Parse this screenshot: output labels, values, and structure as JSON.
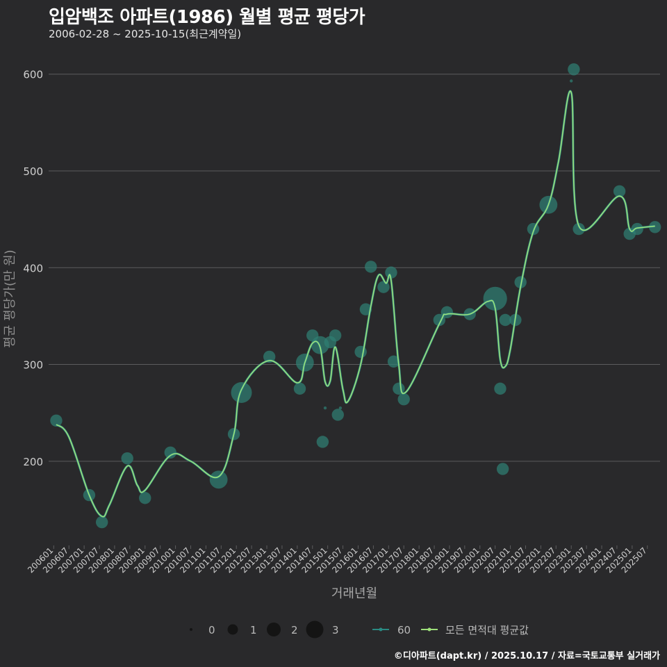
{
  "header": {
    "title": "입암백조 아파트(1986) 월별 평균 평당가",
    "subtitle": "2006-02-28 ~ 2025-10-15(최근계약일)"
  },
  "footer": {
    "credit": "©디아파트(dapt.kr) / 2025.10.17 / 자료=국토교통부 실거래가"
  },
  "colors": {
    "background": "#29292b",
    "grid": "#5c5c5e",
    "point": "#2f7f73",
    "area_line": "#2a8a83",
    "avg_line": "#9ee07a",
    "text": "#cfcfcf"
  },
  "chart_data": {
    "type": "line",
    "title": "입암백조 아파트(1986) 월별 평균 평당가",
    "xlabel": "거래년월",
    "ylabel": "평균 평당가(만 원)",
    "ylim": [
      113,
      635
    ],
    "yticks": [
      200,
      300,
      400,
      500,
      600
    ],
    "x_range": [
      "2005-11",
      "2025-12"
    ],
    "x_tick_labels": [
      "200601",
      "200607",
      "200701",
      "200707",
      "200801",
      "200807",
      "200901",
      "200907",
      "201001",
      "201007",
      "201101",
      "201107",
      "201201",
      "201207",
      "201301",
      "201307",
      "201401",
      "201407",
      "201501",
      "201507",
      "201601",
      "201607",
      "201701",
      "201707",
      "201801",
      "201807",
      "201901",
      "201907",
      "202001",
      "202007",
      "202101",
      "202107",
      "202201",
      "202207",
      "202301",
      "202307",
      "202401",
      "202407",
      "202501",
      "202507"
    ],
    "size_legend": {
      "title": "",
      "values": [
        "0",
        "1",
        "2",
        "3"
      ]
    },
    "series": [
      {
        "name": "60",
        "kind": "points",
        "points": [
          {
            "x": "2006-02",
            "y": 242,
            "size": 1
          },
          {
            "x": "2007-03",
            "y": 165,
            "size": 1
          },
          {
            "x": "2007-08",
            "y": 137,
            "size": 1
          },
          {
            "x": "2008-06",
            "y": 203,
            "size": 1
          },
          {
            "x": "2009-01",
            "y": 162,
            "size": 1
          },
          {
            "x": "2009-11",
            "y": 209,
            "size": 1
          },
          {
            "x": "2011-06",
            "y": 181,
            "size": 2
          },
          {
            "x": "2011-12",
            "y": 228,
            "size": 1
          },
          {
            "x": "2012-03",
            "y": 271,
            "size": 2.5
          },
          {
            "x": "2013-02",
            "y": 308,
            "size": 1
          },
          {
            "x": "2014-02",
            "y": 275,
            "size": 1
          },
          {
            "x": "2014-04",
            "y": 302,
            "size": 2
          },
          {
            "x": "2014-07",
            "y": 330,
            "size": 1
          },
          {
            "x": "2014-10",
            "y": 320,
            "size": 2
          },
          {
            "x": "2014-11",
            "y": 220,
            "size": 1
          },
          {
            "x": "2014-12",
            "y": 255,
            "size": 0.1
          },
          {
            "x": "2015-02",
            "y": 323,
            "size": 1
          },
          {
            "x": "2015-04",
            "y": 330,
            "size": 1
          },
          {
            "x": "2015-05",
            "y": 248,
            "size": 1
          },
          {
            "x": "2015-06",
            "y": 255,
            "size": 0.1
          },
          {
            "x": "2016-02",
            "y": 313,
            "size": 1
          },
          {
            "x": "2016-04",
            "y": 357,
            "size": 1
          },
          {
            "x": "2016-06",
            "y": 401,
            "size": 1
          },
          {
            "x": "2016-11",
            "y": 380,
            "size": 1
          },
          {
            "x": "2017-02",
            "y": 395,
            "size": 1
          },
          {
            "x": "2017-03",
            "y": 303,
            "size": 1
          },
          {
            "x": "2017-05",
            "y": 275,
            "size": 1
          },
          {
            "x": "2017-07",
            "y": 264,
            "size": 1
          },
          {
            "x": "2018-09",
            "y": 346,
            "size": 1
          },
          {
            "x": "2018-12",
            "y": 354,
            "size": 1
          },
          {
            "x": "2019-09",
            "y": 352,
            "size": 1
          },
          {
            "x": "2020-07",
            "y": 368,
            "size": 3
          },
          {
            "x": "2020-09",
            "y": 275,
            "size": 1
          },
          {
            "x": "2020-10",
            "y": 192,
            "size": 1
          },
          {
            "x": "2020-11",
            "y": 346,
            "size": 1
          },
          {
            "x": "2021-03",
            "y": 346,
            "size": 1
          },
          {
            "x": "2021-05",
            "y": 385,
            "size": 1
          },
          {
            "x": "2021-10",
            "y": 440,
            "size": 1
          },
          {
            "x": "2022-04",
            "y": 465,
            "size": 2
          },
          {
            "x": "2023-01",
            "y": 593,
            "size": 0.1
          },
          {
            "x": "2023-02",
            "y": 605,
            "size": 1
          },
          {
            "x": "2023-04",
            "y": 440,
            "size": 1
          },
          {
            "x": "2024-08",
            "y": 479,
            "size": 1
          },
          {
            "x": "2024-12",
            "y": 435,
            "size": 1
          },
          {
            "x": "2025-03",
            "y": 440,
            "size": 1
          },
          {
            "x": "2025-10",
            "y": 442,
            "size": 1
          }
        ]
      },
      {
        "name": "모든 면적대 평균값",
        "kind": "line",
        "points": [
          {
            "x": "2006-02",
            "y": 238
          },
          {
            "x": "2006-07",
            "y": 225
          },
          {
            "x": "2007-03",
            "y": 165
          },
          {
            "x": "2007-08",
            "y": 143
          },
          {
            "x": "2007-11",
            "y": 155
          },
          {
            "x": "2008-06",
            "y": 195
          },
          {
            "x": "2008-10",
            "y": 175
          },
          {
            "x": "2009-01",
            "y": 170
          },
          {
            "x": "2009-11",
            "y": 206
          },
          {
            "x": "2010-07",
            "y": 200
          },
          {
            "x": "2011-06",
            "y": 184
          },
          {
            "x": "2011-12",
            "y": 228
          },
          {
            "x": "2012-03",
            "y": 274
          },
          {
            "x": "2013-02",
            "y": 304
          },
          {
            "x": "2014-01",
            "y": 281
          },
          {
            "x": "2014-04",
            "y": 302
          },
          {
            "x": "2014-07",
            "y": 322
          },
          {
            "x": "2014-10",
            "y": 318
          },
          {
            "x": "2014-12",
            "y": 282
          },
          {
            "x": "2015-02",
            "y": 283
          },
          {
            "x": "2015-04",
            "y": 318
          },
          {
            "x": "2015-07",
            "y": 274
          },
          {
            "x": "2015-09",
            "y": 262
          },
          {
            "x": "2016-02",
            "y": 300
          },
          {
            "x": "2016-06",
            "y": 360
          },
          {
            "x": "2016-09",
            "y": 392
          },
          {
            "x": "2016-12",
            "y": 384
          },
          {
            "x": "2017-02",
            "y": 387
          },
          {
            "x": "2017-05",
            "y": 300
          },
          {
            "x": "2017-08",
            "y": 272
          },
          {
            "x": "2018-09",
            "y": 342
          },
          {
            "x": "2018-12",
            "y": 352
          },
          {
            "x": "2019-09",
            "y": 352
          },
          {
            "x": "2020-04",
            "y": 365
          },
          {
            "x": "2020-07",
            "y": 358
          },
          {
            "x": "2020-09",
            "y": 305
          },
          {
            "x": "2020-11",
            "y": 298
          },
          {
            "x": "2021-01",
            "y": 316
          },
          {
            "x": "2021-05",
            "y": 380
          },
          {
            "x": "2021-10",
            "y": 437
          },
          {
            "x": "2022-04",
            "y": 465
          },
          {
            "x": "2022-08",
            "y": 510
          },
          {
            "x": "2023-01",
            "y": 581
          },
          {
            "x": "2023-04",
            "y": 443
          },
          {
            "x": "2024-08",
            "y": 474
          },
          {
            "x": "2024-12",
            "y": 440
          },
          {
            "x": "2025-03",
            "y": 441
          },
          {
            "x": "2025-10",
            "y": 443
          }
        ]
      }
    ]
  }
}
